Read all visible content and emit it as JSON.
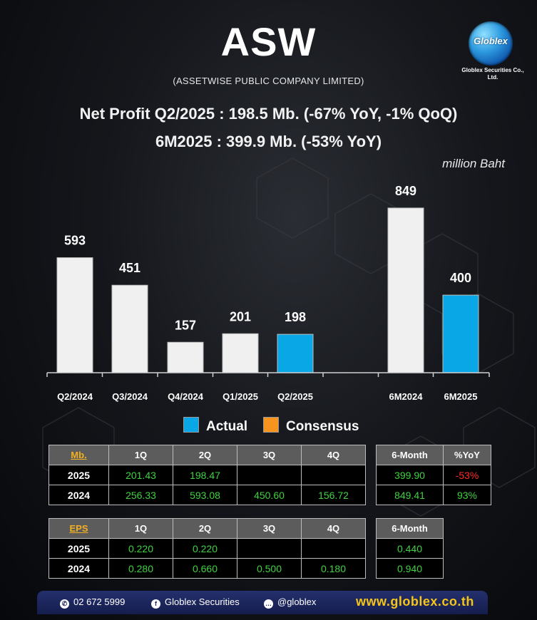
{
  "header": {
    "title": "ASW",
    "subtitle": "(ASSETWISE PUBLIC COMPANY LIMITED)",
    "net_profit_line1": "Net Profit  Q2/2025 : 198.5 Mb. (-67% YoY, -1% QoQ)",
    "net_profit_line2": "6M2025 : 399.9 Mb. (-53% YoY)",
    "unit": "million Baht"
  },
  "logo": {
    "name": "Globlex",
    "company": "Globlex Securities Co., Ltd."
  },
  "colors": {
    "actual": "#0aa7e6",
    "consensus": "#f7941d",
    "bar_default": "#f0f0f0",
    "positive": "#3fd23f",
    "negative": "#ff2a2a"
  },
  "chart_data": {
    "type": "bar",
    "categories": [
      "Q2/2024",
      "Q3/2024",
      "Q4/2024",
      "Q1/2025",
      "Q2/2025",
      "",
      "6M2024",
      "6M2025"
    ],
    "values": [
      593,
      451,
      157,
      201,
      198,
      null,
      849,
      400
    ],
    "data_labels": [
      "593",
      "451",
      "157",
      "201",
      "198",
      "",
      "849",
      "400"
    ],
    "highlight": [
      false,
      false,
      false,
      false,
      true,
      false,
      false,
      true
    ],
    "legend": [
      "Actual",
      "Consensus"
    ],
    "legend_placement": "bottom-center",
    "ylim": [
      0,
      900
    ],
    "grid": false
  },
  "profit_table": {
    "header_label": "Mb.",
    "quarters": [
      "1Q",
      "2Q",
      "3Q",
      "4Q"
    ],
    "rows": [
      {
        "year": "2025",
        "values": [
          "201.43",
          "198.47",
          "",
          ""
        ]
      },
      {
        "year": "2024",
        "values": [
          "256.33",
          "593.08",
          "450.60",
          "156.72"
        ]
      }
    ]
  },
  "six_month_table": {
    "headers": [
      "6-Month",
      "%YoY"
    ],
    "rows": [
      {
        "value": "399.90",
        "yoy": "-53%"
      },
      {
        "value": "849.41",
        "yoy": "93%"
      }
    ]
  },
  "eps_table": {
    "header_label": "EPS",
    "quarters": [
      "1Q",
      "2Q",
      "3Q",
      "4Q"
    ],
    "rows": [
      {
        "year": "2025",
        "values": [
          "0.220",
          "0.220",
          "",
          ""
        ]
      },
      {
        "year": "2024",
        "values": [
          "0.280",
          "0.660",
          "0.500",
          "0.180"
        ]
      }
    ]
  },
  "eps_six_month_table": {
    "header": "6-Month",
    "rows": [
      "0.440",
      "0.940"
    ]
  },
  "footer": {
    "phone": "02 672 5999",
    "facebook": "Globlex Securities",
    "line": "@globlex",
    "website": "www.globlex.co.th"
  }
}
